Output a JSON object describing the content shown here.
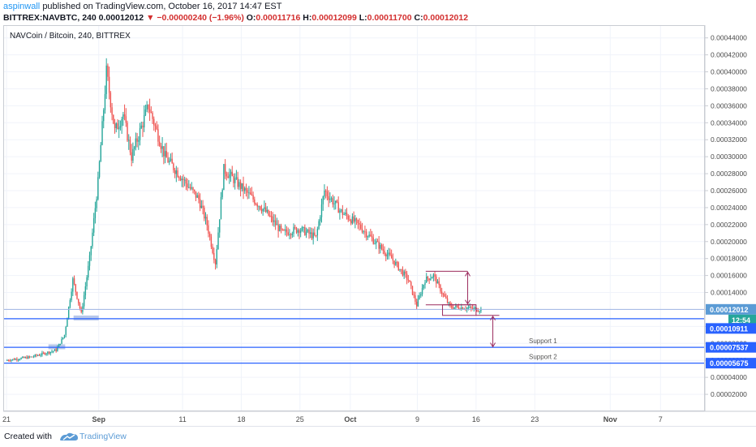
{
  "header": {
    "author": "aspinwall",
    "published": "published on TradingView.com, October 16, 2017 14:47 EST",
    "symbol": "BITTREX:NAVBTC, 240",
    "last": "0.00012012",
    "change_arrow": "▼",
    "change": "−0.00000240 (−1.96%)",
    "o_label": "O:",
    "o": "0.00011716",
    "h_label": "H:",
    "h": "0.00012099",
    "l_label": "L:",
    "l": "0.00011700",
    "c_label": "C:",
    "c": "0.00012012"
  },
  "pair_title": "NAVCoin / Bitcoin, 240, BITTREX",
  "footer": {
    "created_with": "Created with",
    "brand": "TradingView"
  },
  "colors": {
    "up": "#26a69a",
    "down": "#ef5350",
    "hline": "#2962ff",
    "measure": "#9c2b5e",
    "last_price_bg": "#5b9bd5",
    "countdown_bg": "#26a69a",
    "support_bg": "#2962ff",
    "zone": "#9fb4e3"
  },
  "chart_data": {
    "type": "candlestick",
    "title": "NAVCoin / Bitcoin, 240, BITTREX",
    "x_ticks": [
      "21",
      "Sep",
      "11",
      "18",
      "25",
      "Oct",
      "9",
      "16",
      "23",
      "Nov",
      "7"
    ],
    "y_ticks": [
      "0.00002000",
      "0.00004000",
      "0.00006000",
      "0.00008000",
      "0.00010000",
      "0.00012000",
      "0.00014000",
      "0.00016000",
      "0.00018000",
      "0.00020000",
      "0.00022000",
      "0.00024000",
      "0.00026000",
      "0.00028000",
      "0.00030000",
      "0.00032000",
      "0.00034000",
      "0.00036000",
      "0.00038000",
      "0.00040000",
      "0.00042000",
      "0.00044000"
    ],
    "y_range": [
      0.0,
      0.000455
    ],
    "price_path": [
      {
        "date": "2017-08-21",
        "price": 6e-05
      },
      {
        "date": "2017-08-24",
        "price": 6.4e-05
      },
      {
        "date": "2017-08-27",
        "price": 7.2e-05
      },
      {
        "date": "2017-08-28",
        "price": 9e-05
      },
      {
        "date": "2017-08-29",
        "price": 0.000155
      },
      {
        "date": "2017-08-30",
        "price": 0.000115
      },
      {
        "date": "2017-08-31",
        "price": 0.00018
      },
      {
        "date": "2017-09-01",
        "price": 0.00027
      },
      {
        "date": "2017-09-02",
        "price": 0.0004
      },
      {
        "date": "2017-09-03",
        "price": 0.00033
      },
      {
        "date": "2017-09-04",
        "price": 0.00035
      },
      {
        "date": "2017-09-05",
        "price": 0.0003
      },
      {
        "date": "2017-09-07",
        "price": 0.00036
      },
      {
        "date": "2017-09-09",
        "price": 0.0003
      },
      {
        "date": "2017-09-11",
        "price": 0.000275
      },
      {
        "date": "2017-09-13",
        "price": 0.00025
      },
      {
        "date": "2017-09-14",
        "price": 0.00022
      },
      {
        "date": "2017-09-15",
        "price": 0.000175
      },
      {
        "date": "2017-09-16",
        "price": 0.000285
      },
      {
        "date": "2017-09-18",
        "price": 0.000265
      },
      {
        "date": "2017-09-21",
        "price": 0.000235
      },
      {
        "date": "2017-09-23",
        "price": 0.00021
      },
      {
        "date": "2017-09-25",
        "price": 0.000215
      },
      {
        "date": "2017-09-27",
        "price": 0.000205
      },
      {
        "date": "2017-09-28",
        "price": 0.00026
      },
      {
        "date": "2017-09-30",
        "price": 0.000235
      },
      {
        "date": "2017-10-02",
        "price": 0.00022
      },
      {
        "date": "2017-10-04",
        "price": 0.0002
      },
      {
        "date": "2017-10-06",
        "price": 0.00018
      },
      {
        "date": "2017-10-08",
        "price": 0.000155
      },
      {
        "date": "2017-10-09",
        "price": 0.000125
      },
      {
        "date": "2017-10-10",
        "price": 0.000155
      },
      {
        "date": "2017-10-11",
        "price": 0.00016
      },
      {
        "date": "2017-10-12",
        "price": 0.00014
      },
      {
        "date": "2017-10-13",
        "price": 0.000123
      },
      {
        "date": "2017-10-15",
        "price": 0.000122
      },
      {
        "date": "2017-10-16",
        "price": 0.0001201
      }
    ],
    "horizontal_lines": [
      {
        "price": 0.00010911,
        "label": "0.00010911",
        "name": ""
      },
      {
        "price": 7.537e-05,
        "label": "0.00007537",
        "name": "Support 1"
      },
      {
        "price": 5.675e-05,
        "label": "0.00005675",
        "name": "Support 2"
      }
    ],
    "last_price": {
      "price": 0.00012012,
      "label": "0.00012012",
      "countdown": "12:54"
    },
    "measure_box": {
      "date_start": "2017-10-10",
      "date_end": "2017-10-15",
      "top": 0.000165,
      "bottom": 0.0001255
    },
    "range_box": {
      "date_start": "2017-10-12",
      "date_end": "2017-10-16",
      "top": 0.0001255,
      "bottom": 0.000113
    },
    "projection": {
      "date": "2017-10-18",
      "from": 0.000113,
      "to": 7.5e-05
    },
    "zones": [
      {
        "date_start": "2017-08-29",
        "date_end": "2017-09-01",
        "price": 0.00011
      },
      {
        "date_start": "2017-08-26",
        "date_end": "2017-08-28",
        "price": 7.6e-05
      }
    ],
    "grid": true,
    "legend": "none"
  }
}
